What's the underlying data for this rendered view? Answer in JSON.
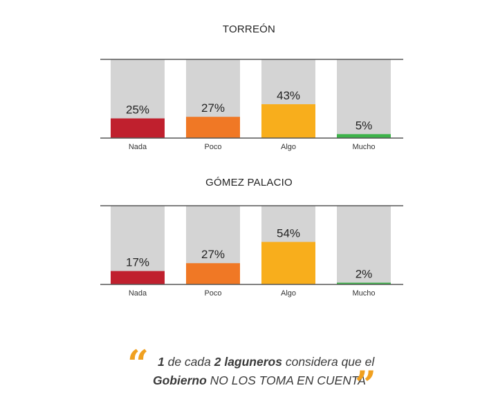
{
  "chart_data": [
    {
      "type": "bar",
      "title": "TORREÓN",
      "categories": [
        "Nada",
        "Poco",
        "Algo",
        "Mucho"
      ],
      "values": [
        25,
        27,
        43,
        5
      ],
      "value_labels": [
        "25%",
        "27%",
        "43%",
        "5%"
      ],
      "colors": [
        "#c0202e",
        "#f07825",
        "#f8ae1c",
        "#3db34a"
      ],
      "ylim": [
        0,
        100
      ],
      "grid": false
    },
    {
      "type": "bar",
      "title": "GÓMEZ PALACIO",
      "categories": [
        "Nada",
        "Poco",
        "Algo",
        "Mucho"
      ],
      "values": [
        17,
        27,
        54,
        2
      ],
      "value_labels": [
        "17%",
        "27%",
        "54%",
        "2%"
      ],
      "colors": [
        "#c0202e",
        "#f07825",
        "#f8ae1c",
        "#3db34a"
      ],
      "ylim": [
        0,
        100
      ],
      "grid": false
    }
  ],
  "quote": {
    "open_mark": "“",
    "close_mark": "”",
    "num1": "1",
    "text1": " de cada ",
    "num2": "2 laguneros",
    "text2": " considera que el",
    "line2_a": "Gobierno ",
    "line2_b": "NO LOS TOMA EN CUENTA"
  },
  "colors": {
    "track": "#d4d4d4",
    "axis": "#555555",
    "accent": "#f0a020"
  }
}
